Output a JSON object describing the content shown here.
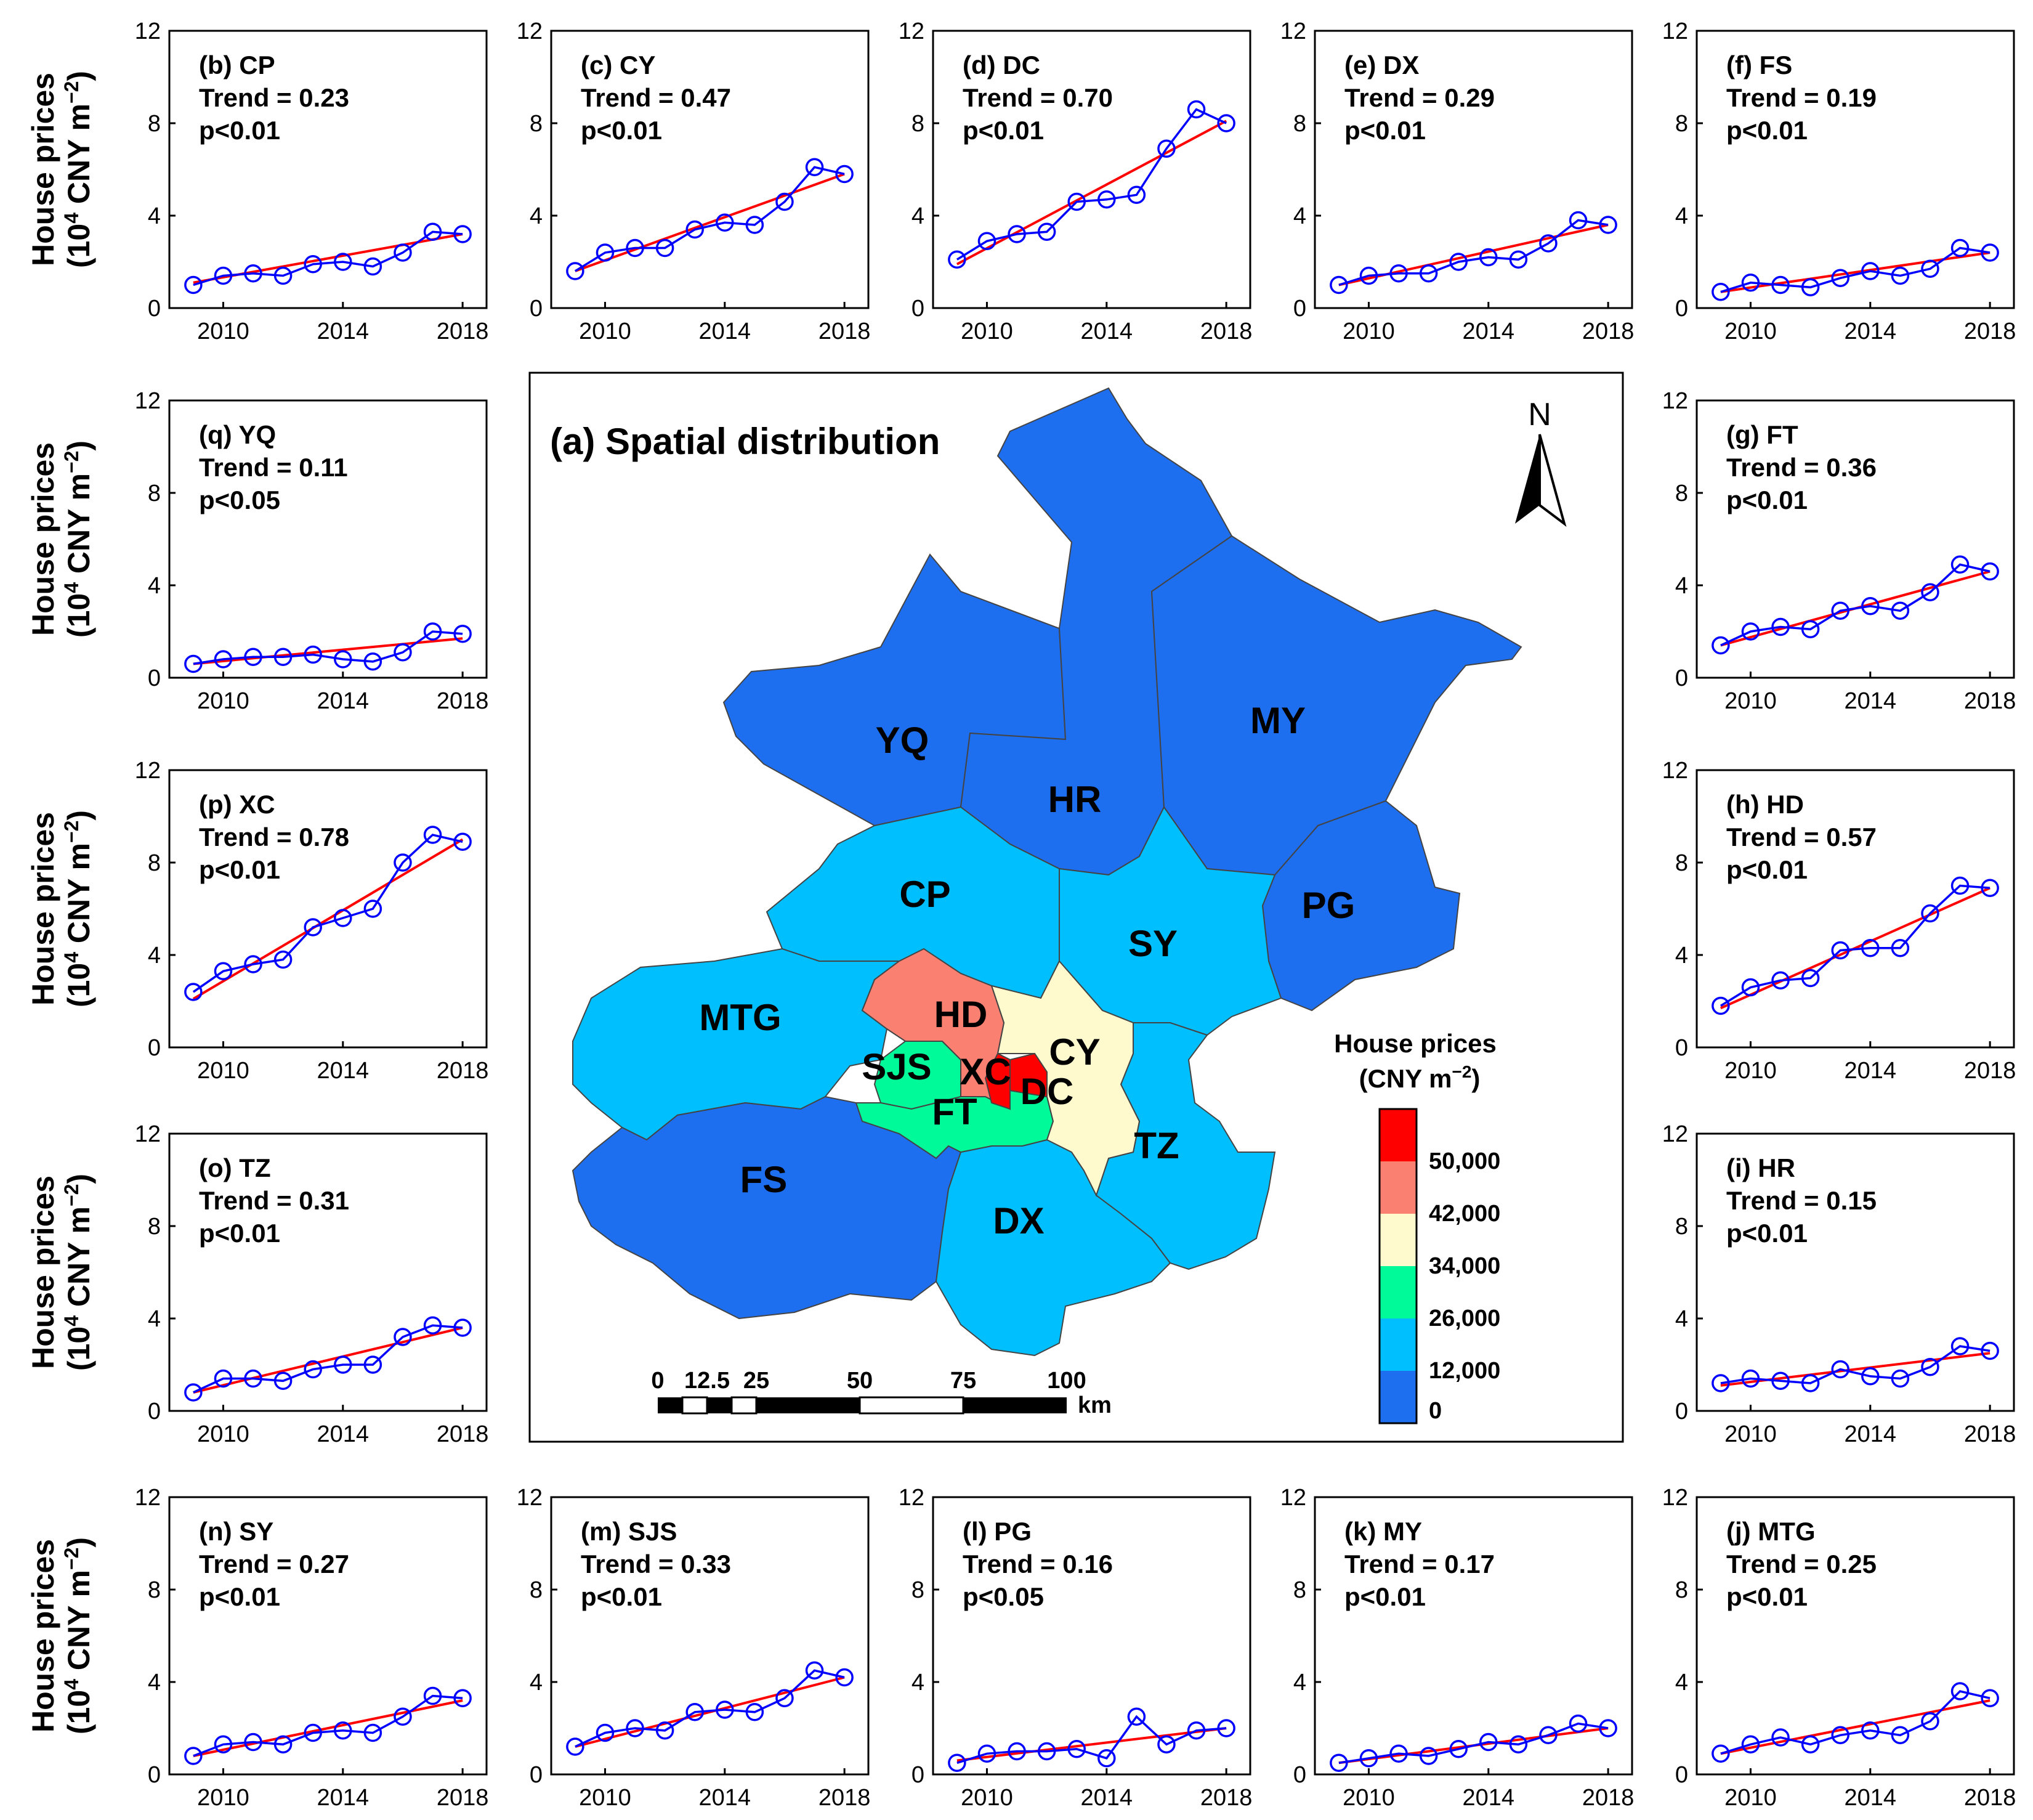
{
  "chart_data": {
    "type": "line",
    "x_ticks": [
      2010,
      2014,
      2018
    ],
    "y_ticks": [
      0,
      4,
      8,
      12
    ],
    "xlim": [
      2008.2,
      2018.8
    ],
    "ylim": [
      0,
      12
    ],
    "years": [
      2009,
      2010,
      2011,
      2012,
      2013,
      2014,
      2015,
      2016,
      2017,
      2018
    ],
    "ylabel_line1": "House prices",
    "ylabel_line2_prefix": "(10",
    "ylabel_line2_sup": "4",
    "ylabel_line2_mid": " CNY m",
    "ylabel_line2_sup2": "−2",
    "ylabel_line2_suffix": ")",
    "series_colors": {
      "observed": "#0000ff",
      "trend": "#ff0000"
    },
    "panels": [
      {
        "id": "b",
        "label": "(b) CP",
        "trend": "Trend = 0.23",
        "p": "p<0.01",
        "values": [
          1.0,
          1.4,
          1.5,
          1.4,
          1.9,
          2.0,
          1.8,
          2.4,
          3.3,
          3.2
        ],
        "fit": [
          1.1,
          3.2
        ]
      },
      {
        "id": "c",
        "label": "(c) CY",
        "trend": "Trend = 0.47",
        "p": "p<0.01",
        "values": [
          1.6,
          2.4,
          2.6,
          2.6,
          3.4,
          3.7,
          3.6,
          4.6,
          6.1,
          5.8
        ],
        "fit": [
          1.6,
          5.8
        ]
      },
      {
        "id": "d",
        "label": "(d) DC",
        "trend": "Trend = 0.70",
        "p": "p<0.01",
        "values": [
          2.1,
          2.9,
          3.2,
          3.3,
          4.6,
          4.7,
          4.9,
          6.9,
          8.6,
          8.0
        ],
        "fit": [
          1.9,
          8.1
        ]
      },
      {
        "id": "e",
        "label": "(e) DX",
        "trend": "Trend = 0.29",
        "p": "p<0.01",
        "values": [
          1.0,
          1.4,
          1.5,
          1.5,
          2.0,
          2.2,
          2.1,
          2.8,
          3.8,
          3.6
        ],
        "fit": [
          1.0,
          3.6
        ]
      },
      {
        "id": "f",
        "label": "(f) FS",
        "trend": "Trend = 0.19",
        "p": "p<0.01",
        "values": [
          0.7,
          1.1,
          1.0,
          0.9,
          1.3,
          1.6,
          1.4,
          1.7,
          2.6,
          2.4
        ],
        "fit": [
          0.7,
          2.4
        ]
      },
      {
        "id": "g",
        "label": "(g) FT",
        "trend": "Trend = 0.36",
        "p": "p<0.01",
        "values": [
          1.4,
          2.0,
          2.2,
          2.1,
          2.9,
          3.1,
          2.9,
          3.7,
          4.9,
          4.6
        ],
        "fit": [
          1.4,
          4.6
        ]
      },
      {
        "id": "h",
        "label": "(h) HD",
        "trend": "Trend = 0.57",
        "p": "p<0.01",
        "values": [
          1.8,
          2.6,
          2.9,
          3.0,
          4.2,
          4.3,
          4.3,
          5.8,
          7.0,
          6.9
        ],
        "fit": [
          1.7,
          6.9
        ]
      },
      {
        "id": "i",
        "label": "(i) HR",
        "trend": "Trend = 0.15",
        "p": "p<0.01",
        "values": [
          1.2,
          1.4,
          1.3,
          1.2,
          1.8,
          1.5,
          1.4,
          1.9,
          2.8,
          2.6
        ],
        "fit": [
          1.1,
          2.5
        ]
      },
      {
        "id": "j",
        "label": "(j) MTG",
        "trend": "Trend = 0.25",
        "p": "p<0.01",
        "values": [
          0.9,
          1.3,
          1.6,
          1.3,
          1.7,
          1.9,
          1.7,
          2.3,
          3.6,
          3.3
        ],
        "fit": [
          0.9,
          3.2
        ]
      },
      {
        "id": "k",
        "label": "(k) MY",
        "trend": "Trend = 0.17",
        "p": "p<0.01",
        "values": [
          0.5,
          0.7,
          0.9,
          0.8,
          1.1,
          1.4,
          1.3,
          1.7,
          2.2,
          2.0
        ],
        "fit": [
          0.5,
          2.0
        ]
      },
      {
        "id": "l",
        "label": "(l) PG",
        "trend": "Trend = 0.16",
        "p": "p<0.05",
        "values": [
          0.5,
          0.9,
          1.0,
          1.0,
          1.1,
          0.7,
          2.5,
          1.3,
          1.9,
          2.0
        ],
        "fit": [
          0.6,
          2.0
        ]
      },
      {
        "id": "m",
        "label": "(m) SJS",
        "trend": "Trend = 0.33",
        "p": "p<0.01",
        "values": [
          1.2,
          1.8,
          2.0,
          1.9,
          2.7,
          2.8,
          2.7,
          3.3,
          4.5,
          4.2
        ],
        "fit": [
          1.2,
          4.2
        ]
      },
      {
        "id": "n",
        "label": "(n) SY",
        "trend": "Trend = 0.27",
        "p": "p<0.01",
        "values": [
          0.8,
          1.3,
          1.4,
          1.3,
          1.8,
          1.9,
          1.8,
          2.5,
          3.4,
          3.3
        ],
        "fit": [
          0.8,
          3.2
        ]
      },
      {
        "id": "o",
        "label": "(o) TZ",
        "trend": "Trend = 0.31",
        "p": "p<0.01",
        "values": [
          0.8,
          1.4,
          1.4,
          1.3,
          1.8,
          2.0,
          2.0,
          3.2,
          3.7,
          3.6
        ],
        "fit": [
          0.8,
          3.6
        ]
      },
      {
        "id": "p",
        "label": "(p) XC",
        "trend": "Trend = 0.78",
        "p": "p<0.01",
        "values": [
          2.4,
          3.3,
          3.6,
          3.8,
          5.2,
          5.6,
          6.0,
          8.0,
          9.2,
          8.9
        ],
        "fit": [
          2.1,
          9.0
        ]
      },
      {
        "id": "q",
        "label": "(q) YQ",
        "trend": "Trend = 0.11",
        "p": "p<0.05",
        "values": [
          0.6,
          0.8,
          0.9,
          0.9,
          1.0,
          0.8,
          0.7,
          1.1,
          2.0,
          1.9
        ],
        "fit": [
          0.6,
          1.7
        ]
      }
    ],
    "map": {
      "title": "(a) Spatial distribution",
      "north": "N",
      "legend_title_line1": "House prices",
      "legend_title_line2_prefix": "(CNY m",
      "legend_title_line2_sup": "−2",
      "legend_title_line2_suffix": ")",
      "legend_ticks": [
        "50,000",
        "42,000",
        "34,000",
        "26,000",
        "12,000",
        "0"
      ],
      "legend_colors": [
        "#ff0000",
        "#fa8072",
        "#fffacd",
        "#00fa9a",
        "#00bfff",
        "#1e6ef0"
      ],
      "scale_ticks": [
        "0",
        "12.5",
        "25",
        "50",
        "75",
        "100"
      ],
      "scale_unit": "km",
      "districts": [
        {
          "name": "YQ",
          "class": 5
        },
        {
          "name": "HR",
          "class": 5
        },
        {
          "name": "MY",
          "class": 5
        },
        {
          "name": "PG",
          "class": 5
        },
        {
          "name": "FS",
          "class": 5
        },
        {
          "name": "CP",
          "class": 4
        },
        {
          "name": "SY",
          "class": 4
        },
        {
          "name": "MTG",
          "class": 4
        },
        {
          "name": "TZ",
          "class": 4
        },
        {
          "name": "DX",
          "class": 4
        },
        {
          "name": "SJS",
          "class": 3
        },
        {
          "name": "FT",
          "class": 3
        },
        {
          "name": "CY",
          "class": 2
        },
        {
          "name": "HD",
          "class": 1
        },
        {
          "name": "DC",
          "class": 0
        },
        {
          "name": "XC",
          "class": 0
        }
      ]
    }
  }
}
